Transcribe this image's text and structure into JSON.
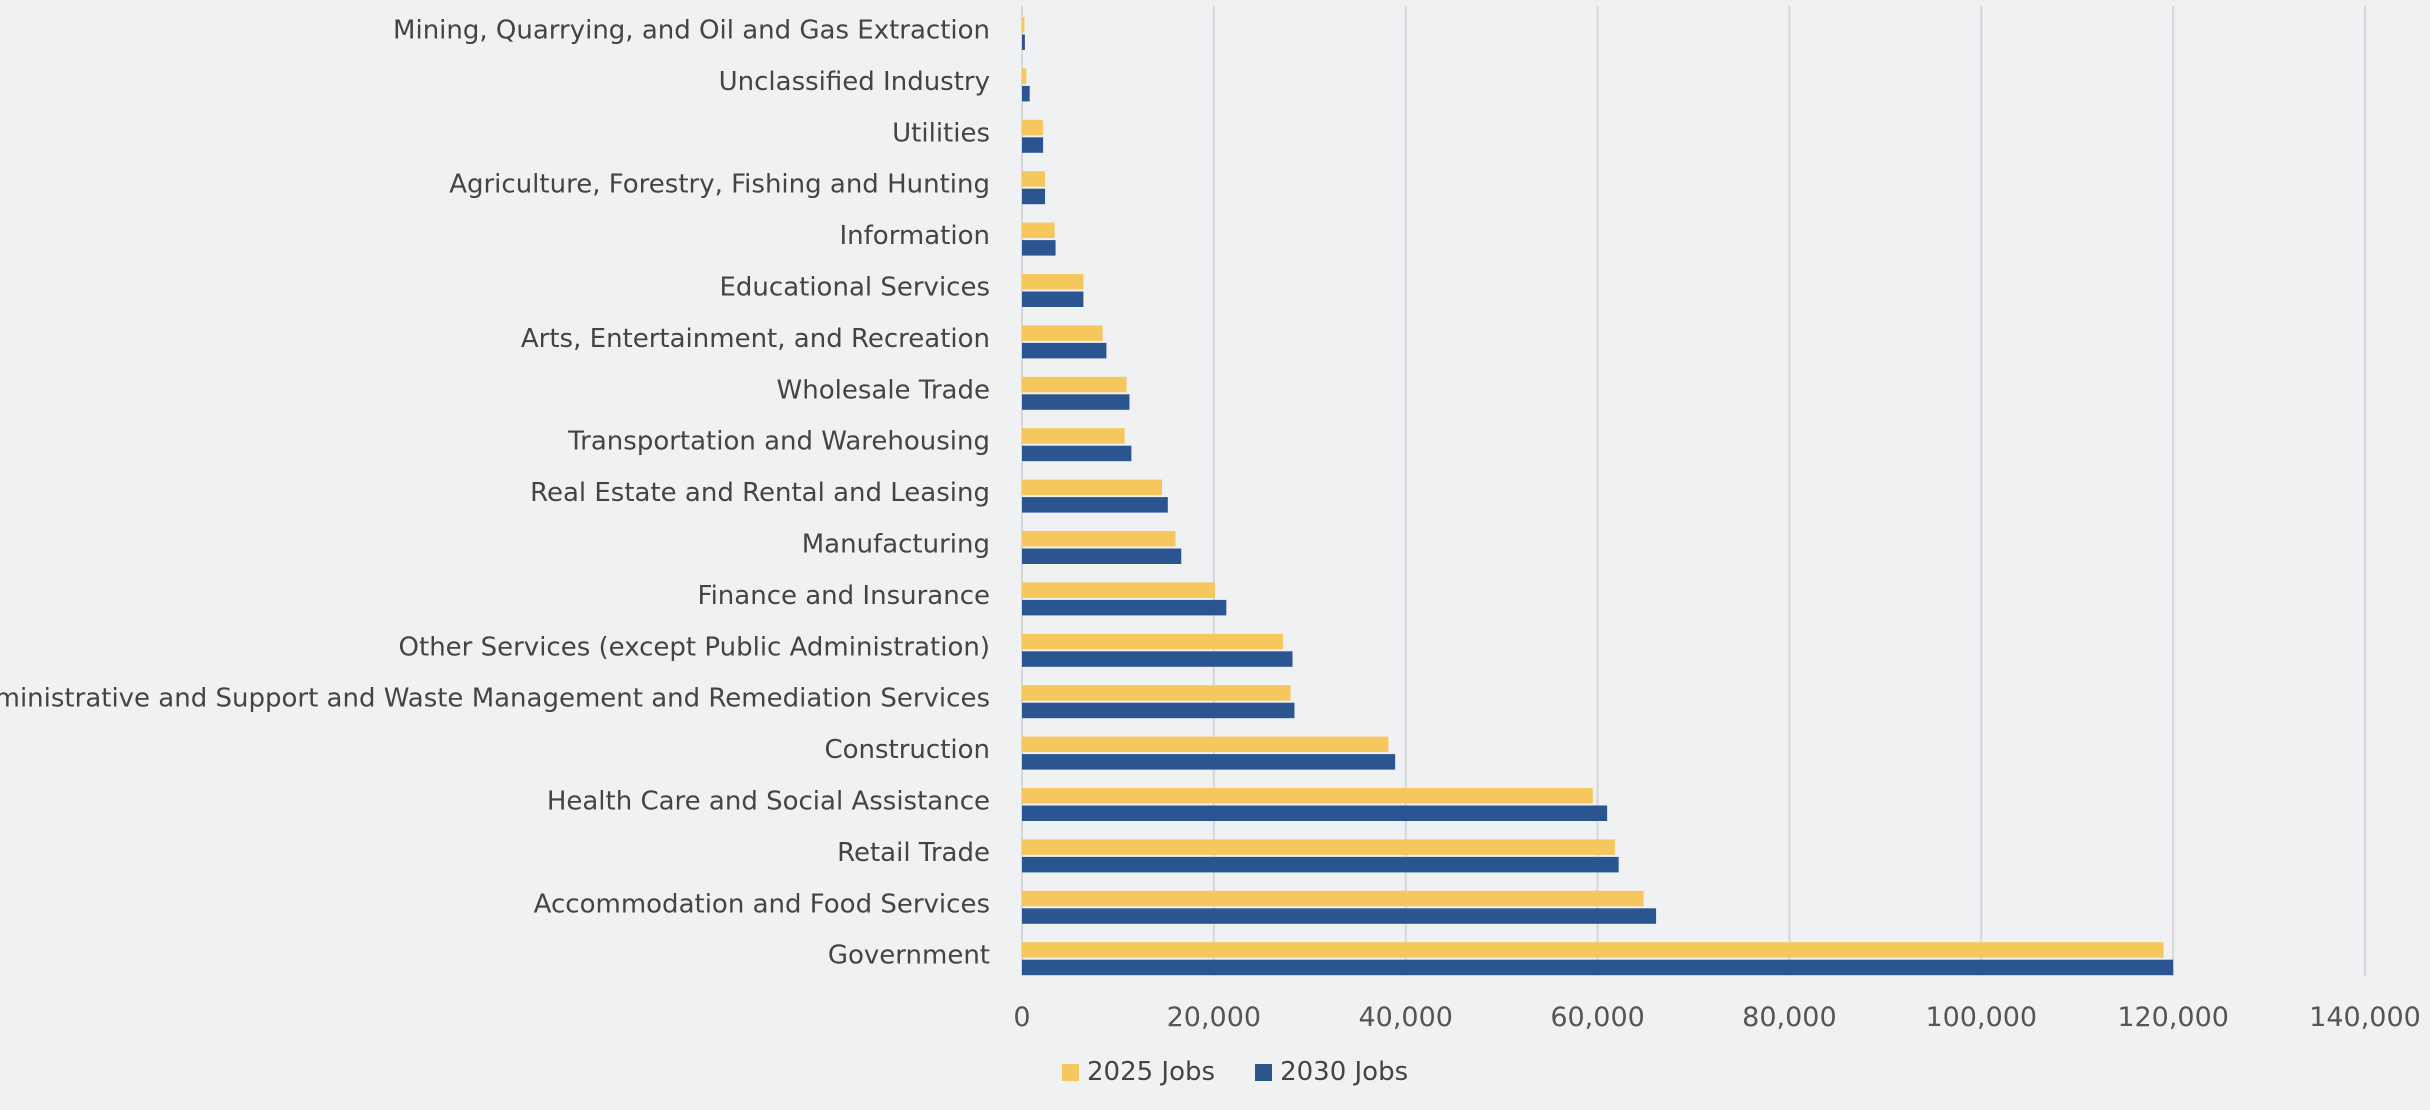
{
  "chart_data": {
    "type": "bar",
    "orientation": "horizontal",
    "categories": [
      "Mining, Quarrying, and Oil and Gas Extraction",
      "Unclassified Industry",
      "Utilities",
      "Agriculture, Forestry, Fishing and Hunting",
      "Information",
      "Educational Services",
      "Arts, Entertainment, and Recreation",
      "Wholesale Trade",
      "Transportation and Warehousing",
      "Real Estate and Rental and Leasing",
      "Manufacturing",
      "Finance and Insurance",
      "Other Services (except Public Administration)",
      "Administrative and Support and Waste Management and Remediation Services",
      "Construction",
      "Health Care and Social Assistance",
      "Retail Trade",
      "Accommodation and Food Services",
      "Government"
    ],
    "series": [
      {
        "name": "2025 Jobs",
        "color": "#f5c75c",
        "values": [
          250,
          450,
          2200,
          2400,
          3400,
          6400,
          8400,
          10900,
          10700,
          14600,
          16000,
          20100,
          27200,
          28000,
          38200,
          59500,
          61800,
          64800,
          119000
        ]
      },
      {
        "name": "2030 Jobs",
        "color": "#2b5591",
        "values": [
          300,
          800,
          2200,
          2400,
          3500,
          6400,
          8800,
          11200,
          11400,
          15200,
          16600,
          21300,
          28200,
          28400,
          38900,
          61000,
          62200,
          66100,
          120000
        ]
      }
    ],
    "xlim": [
      0,
      140000
    ],
    "xticks": [
      0,
      20000,
      40000,
      60000,
      80000,
      100000,
      120000,
      140000
    ],
    "xtick_labels": [
      "0",
      "20,000",
      "40,000",
      "60,000",
      "80,000",
      "100,000",
      "120,000",
      "140,000"
    ],
    "grid": "vertical",
    "legend_position": "bottom",
    "title": "",
    "xlabel": "",
    "ylabel": ""
  }
}
